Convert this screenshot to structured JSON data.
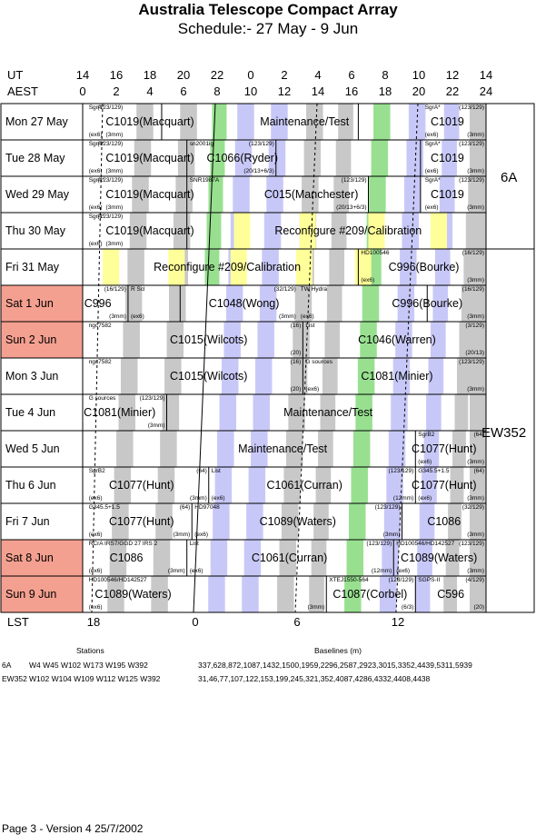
{
  "title": "Australia Telescope Compact Array",
  "subtitle": "Schedule:- 27 May - 9  Jun",
  "ut_label": "UT",
  "aest_label": "AEST",
  "lst_label": "LST",
  "ut_ticks": [
    "14",
    "16",
    "18",
    "20",
    "22",
    "0",
    "2",
    "4",
    "6",
    "8",
    "10",
    "12",
    "14"
  ],
  "aest_ticks": [
    "0",
    "2",
    "4",
    "6",
    "8",
    "10",
    "12",
    "14",
    "16",
    "18",
    "20",
    "22",
    "24"
  ],
  "lst_ticks": [
    "18",
    "0",
    "6",
    "12"
  ],
  "days": [
    {
      "label": "Mon  27 May",
      "weekend": false
    },
    {
      "label": "Tue  28 May",
      "weekend": false
    },
    {
      "label": "Wed 29 May",
      "weekend": false
    },
    {
      "label": "Thu  30 May",
      "weekend": false
    },
    {
      "label": "Fri    31 May",
      "weekend": false
    },
    {
      "label": "Sat    1  Jun",
      "weekend": true
    },
    {
      "label": "Sun   2  Jun",
      "weekend": true
    },
    {
      "label": "Mon   3  Jun",
      "weekend": false
    },
    {
      "label": "Tue    4  Jun",
      "weekend": false
    },
    {
      "label": "Wed   5  Jun",
      "weekend": false
    },
    {
      "label": "Thu    6  Jun",
      "weekend": false
    },
    {
      "label": "Fri     7  Jun",
      "weekend": false
    },
    {
      "label": "Sat    8  Jun",
      "weekend": true
    },
    {
      "label": "Sun   9  Jun",
      "weekend": true
    }
  ],
  "configs": [
    {
      "label": "6A"
    },
    {
      "label": "EW352"
    }
  ],
  "blocks": [
    {
      "day": 0,
      "name": "C1019(Macquart)",
      "src": "SgrA*",
      "rec": "(123/129)",
      "arr": "(ex6)",
      "band": "(3mm)"
    },
    {
      "day": 0,
      "name": "Maintenance/Test"
    },
    {
      "day": 0,
      "name": "C1019",
      "src": "SgrA*",
      "rec": "(123/129)",
      "arr": "(ex6)",
      "band": "(3mm)"
    },
    {
      "day": 1,
      "name": "C1019(Macquart)",
      "src": "SgrA*",
      "rec": "(123/129)",
      "arr": "(ex6)",
      "band": "(3mm)"
    },
    {
      "day": 1,
      "name": "C1066(Ryder)",
      "src": "sn2001ig",
      "rec": "(123/129)",
      "band": "(20/13+6/3)"
    },
    {
      "day": 1,
      "name": "C1019",
      "src": "SgrA*",
      "rec": "(123/129)",
      "arr": "(ex6)",
      "band": "(3mm)"
    },
    {
      "day": 2,
      "name": "C1019(Macquart)",
      "src": "SgrA*",
      "rec": "(123/129)",
      "arr": "(ex6)",
      "band": "(3mm)"
    },
    {
      "day": 2,
      "name": "C015(Manchester)",
      "src": "SNR1987A",
      "rec": "(123/129)",
      "band": "(20/13+6/3)"
    },
    {
      "day": 2,
      "name": "C1019",
      "src": "SgrA*",
      "rec": "(123/129)",
      "arr": "(ex6)",
      "band": "(3mm)"
    },
    {
      "day": 3,
      "name": "C1019(Macquart)",
      "src": "SgrA*",
      "rec": "(123/129)",
      "arr": "(ex6)",
      "band": "(3mm)"
    },
    {
      "day": 3,
      "name": "Reconfigure #209/Calibration"
    },
    {
      "day": 4,
      "name": "Reconfigure #209/Calibration"
    },
    {
      "day": 4,
      "name": "C996(Bourke)",
      "src": "HD100546",
      "rec": "(16/129)",
      "arr": "(ex6)",
      "band": "(3mm)"
    },
    {
      "day": 5,
      "name": "C996",
      "rec": "(16/129)",
      "band": "(3mm)"
    },
    {
      "day": 5,
      "name": "C1048(Wong)",
      "src": "R Scl",
      "arr": "(ex6)",
      "rec": "(32/129)",
      "band": "(3mm)"
    },
    {
      "day": 5,
      "name": "C996(Bourke)",
      "src": "TW Hydra",
      "rec": "(16/129)",
      "arr": "(ex6)",
      "band": "(3mm)"
    },
    {
      "day": 6,
      "name": "C1015(Wilcots)",
      "src": "ngc7582",
      "rec": "(16)",
      "band": "(20)"
    },
    {
      "day": 6,
      "name": "C1046(Warren)",
      "src": "List",
      "rec": "(3/129)",
      "band": "(20/13)"
    },
    {
      "day": 7,
      "name": "C1015(Wilcots)",
      "src": "ngc7582",
      "rec": "(16)",
      "band": "(20)"
    },
    {
      "day": 7,
      "name": "C1081(Minier)",
      "src": "G sources",
      "rec": "(123/129)",
      "arr": "(ex6)",
      "band": "(3mm)"
    },
    {
      "day": 8,
      "name": "C1081(Minier)",
      "src": "G sources",
      "rec": "(123/129)",
      "band": "(3mm)"
    },
    {
      "day": 8,
      "name": "Maintenance/Test"
    },
    {
      "day": 9,
      "name": "Maintenance/Test"
    },
    {
      "day": 9,
      "name": "C1077(Hunt)",
      "src": "SgrB2",
      "rec": "(64)",
      "arr": "(ex6)",
      "band": "(3mm)"
    },
    {
      "day": 10,
      "name": "C1077(Hunt)",
      "src": "SgrB2",
      "rec": "(64)",
      "arr": "(ex6)",
      "band": "(3mm)"
    },
    {
      "day": 10,
      "name": "C1061(Curran)",
      "src": "List",
      "rec": "(123/129)",
      "arr": "(ex6)",
      "band": "(12mm)"
    },
    {
      "day": 10,
      "name": "C1077(Hunt)",
      "src": "G345.5+1.5",
      "rec": "(64)",
      "arr": "(ex6)",
      "band": "(3mm)"
    },
    {
      "day": 11,
      "name": "C1077(Hunt)",
      "src": "G345.5+1.5",
      "rec": "(64)",
      "arr": "(ex6)",
      "band": "(3mm)"
    },
    {
      "day": 11,
      "name": "C1089(Waters)",
      "src": "HD97048",
      "rec": "(123/129)",
      "arr": "(ex6)",
      "band": "(3mm)"
    },
    {
      "day": 11,
      "name": "C1086",
      "rec": "(32/129)",
      "band": "(3mm)"
    },
    {
      "day": 12,
      "name": "C1086",
      "src": "RCrA IRS7/GGD 27 IRS 2",
      "arr": "(ex6)",
      "band": "(3mm)"
    },
    {
      "day": 12,
      "name": "C1061(Curran)",
      "src": "List",
      "rec": "(123/129)",
      "arr": "(ex6)",
      "band": "(12mm)"
    },
    {
      "day": 12,
      "name": "C1089(Waters)",
      "src": "HD100546/HD142527",
      "rec": "(123/129)",
      "arr": "(ex6)",
      "band": "(3mm)"
    },
    {
      "day": 13,
      "name": "C1089(Waters)",
      "src": "HD100546/HD142527",
      "arr": "(ex6)",
      "band": "(3mm)"
    },
    {
      "day": 13,
      "name": "C1087(Corbel)",
      "src": "XTEJ1550-564",
      "rec": "(123/129)",
      "band": "(6/3)"
    },
    {
      "day": 13,
      "name": "C596",
      "src": "SGPS-II",
      "rec": "(4/129)",
      "band": "(20)"
    }
  ],
  "footer": {
    "stations_header": "Stations",
    "baselines_header": "Baselines (m)",
    "rows": [
      {
        "config": "6A",
        "stations": "W4 W45 W102 W173 W195 W392",
        "baselines": "337,628,872,1087,1432,1500,1959,2296,2587,2923,3015,3352,4439,5311,5939"
      },
      {
        "config": "EW352",
        "stations": "W102 W104 W109 W112 W125 W392",
        "baselines": "31,46,77,107,122,153,199,245,321,352,4087,4286,4332,4408,4438"
      }
    ],
    "page_info": "Page 3 - Version 4  25/7/2002"
  },
  "colors": {
    "weekend": "#f4a090",
    "gray": "#c8c8c8",
    "blue": "#c8c8f8",
    "green": "#98e090",
    "yellow": "#ffff99",
    "grid": "#000000"
  }
}
